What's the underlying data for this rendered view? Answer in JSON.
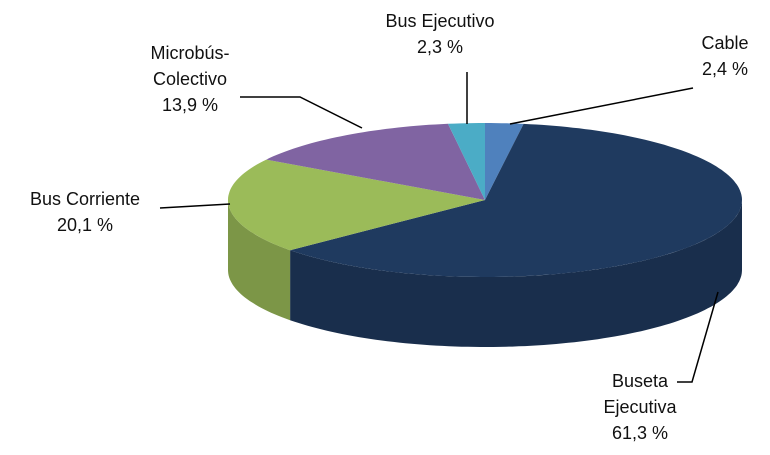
{
  "chart_data": {
    "type": "pie3d",
    "categories": [
      "Cable",
      "Buseta Ejecutiva",
      "Bus Corriente",
      "Microbús-Colectivo",
      "Bus Ejecutivo"
    ],
    "values": [
      2.4,
      61.3,
      20.1,
      13.9,
      2.3
    ],
    "value_labels": [
      "2,4 %",
      "61,3 %",
      "20,1 %",
      "13,9 %",
      "2,3 %"
    ],
    "colors": [
      "#4f81bd",
      "#1f3a5f",
      "#9bbb59",
      "#8064a2",
      "#4bacc6"
    ]
  }
}
